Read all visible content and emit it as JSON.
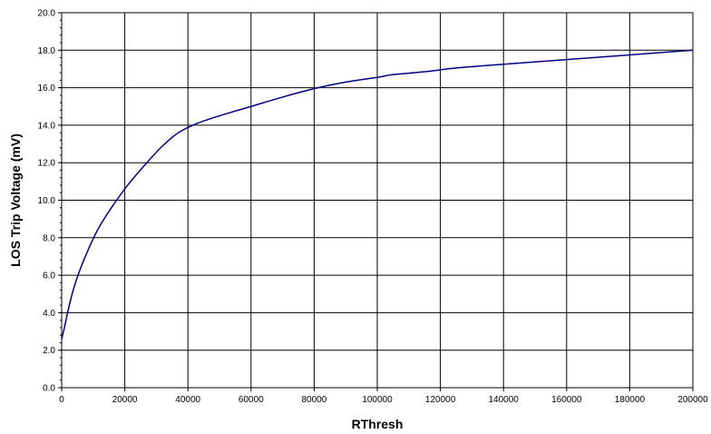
{
  "chart_data": {
    "type": "line",
    "title": "",
    "xlabel": "RThresh",
    "ylabel": "LOS Trip Voltage (mV)",
    "xlim": [
      0,
      200000
    ],
    "ylim": [
      0,
      20
    ],
    "grid": true,
    "legend": "none",
    "xticks": [
      0,
      20000,
      40000,
      60000,
      80000,
      100000,
      120000,
      140000,
      160000,
      180000,
      200000
    ],
    "xtick_labels": [
      "0",
      "20000",
      "40000",
      "60000",
      "80000",
      "100000",
      "120000",
      "140000",
      "160000",
      "180000",
      "200000"
    ],
    "yticks": [
      0,
      2,
      4,
      6,
      8,
      10,
      12,
      14,
      16,
      18,
      20
    ],
    "ytick_labels": [
      "0.0",
      "2.0",
      "4.0",
      "6.0",
      "8.0",
      "10.0",
      "12.0",
      "14.0",
      "16.0",
      "18.0",
      "20.0"
    ],
    "series": [
      {
        "color": "#000080",
        "x": [
          0,
          1000,
          2000,
          4000,
          7000,
          12000,
          20000,
          27000,
          32000,
          37000,
          43000,
          50000,
          60000,
          70000,
          80000,
          90000,
          100000,
          105000,
          115000,
          125000,
          140000,
          160000,
          180000,
          200000
        ],
        "y": [
          2.6,
          3.3,
          4.1,
          5.4,
          6.8,
          8.6,
          10.6,
          12.0,
          12.9,
          13.6,
          14.1,
          14.5,
          15.0,
          15.5,
          15.95,
          16.3,
          16.55,
          16.7,
          16.85,
          17.05,
          17.25,
          17.5,
          17.75,
          18.0
        ]
      }
    ]
  }
}
